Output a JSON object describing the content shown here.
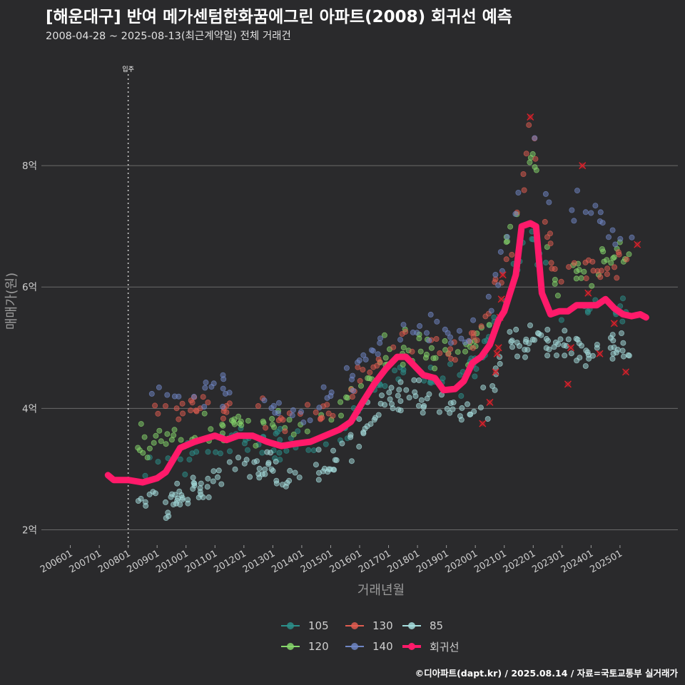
{
  "title": "[해운대구] 반여 메가센텀한화꿈에그린 아파트(2008) 회귀선 예측",
  "subtitle": "2008-04-28 ~ 2025-08-13(최근계약일) 전체 거래건",
  "credit": "©디아파트(dapt.kr) / 2025.08.14 / 자료=국토교통부 실거래가",
  "colors": {
    "background": "#2a2a2c",
    "grid": "#6a6a6a",
    "s105": "#2b8f8a",
    "s120": "#86d66b",
    "s130": "#e05c50",
    "s140": "#6f86c4",
    "s85": "#a6dede",
    "regression": "#ff1a6a",
    "cancelled_marker": "#e0202a"
  },
  "chart_data": {
    "type": "scatter",
    "xlabel": "거래년월",
    "ylabel": "매매가(원)",
    "xlim": [
      "2005-01",
      "2026-12"
    ],
    "ylim": [
      1.7,
      9.6
    ],
    "y_ticks": [
      {
        "value": 2,
        "label": "2억"
      },
      {
        "value": 4,
        "label": "4억"
      },
      {
        "value": 6,
        "label": "6억"
      },
      {
        "value": 8,
        "label": "8억"
      }
    ],
    "x_ticks": [
      {
        "value": 2006.0,
        "label": "200601"
      },
      {
        "value": 2007.0,
        "label": "200701"
      },
      {
        "value": 2008.0,
        "label": "200801"
      },
      {
        "value": 2009.0,
        "label": "200901"
      },
      {
        "value": 2010.0,
        "label": "201001"
      },
      {
        "value": 2011.0,
        "label": "201101"
      },
      {
        "value": 2012.0,
        "label": "201201"
      },
      {
        "value": 2013.0,
        "label": "201301"
      },
      {
        "value": 2014.0,
        "label": "201401"
      },
      {
        "value": 2015.0,
        "label": "201501"
      },
      {
        "value": 2016.0,
        "label": "201601"
      },
      {
        "value": 2017.0,
        "label": "201701"
      },
      {
        "value": 2018.0,
        "label": "201801"
      },
      {
        "value": 2019.0,
        "label": "201901"
      },
      {
        "value": 2020.0,
        "label": "202001"
      },
      {
        "value": 2021.0,
        "label": "202101"
      },
      {
        "value": 2022.0,
        "label": "202201"
      },
      {
        "value": 2023.0,
        "label": "202301"
      },
      {
        "value": 2024.0,
        "label": "202401"
      },
      {
        "value": 2025.0,
        "label": "202501"
      }
    ],
    "annotation": {
      "x": 2008.0,
      "label": "입주"
    },
    "legend_position": "bottom",
    "series": [
      {
        "name": "105",
        "color": "#2b8f8a",
        "anchors": [
          [
            2008.3,
            3.0
          ],
          [
            2009.5,
            3.1
          ],
          [
            2010.5,
            3.3
          ],
          [
            2011.5,
            3.4
          ],
          [
            2012.5,
            3.45
          ],
          [
            2013.5,
            3.4
          ],
          [
            2014.5,
            3.45
          ],
          [
            2015.5,
            3.7
          ],
          [
            2016.5,
            4.3
          ],
          [
            2017.5,
            4.6
          ],
          [
            2018.5,
            4.5
          ],
          [
            2019.5,
            4.45
          ],
          [
            2020.5,
            5.1
          ],
          [
            2021.5,
            6.6
          ],
          [
            2021.9,
            7.0
          ],
          [
            2022.8,
            5.6
          ],
          [
            2023.5,
            5.7
          ],
          [
            2024.5,
            5.6
          ],
          [
            2025.5,
            5.6
          ]
        ],
        "spread": 0.25,
        "count": 120
      },
      {
        "name": "120",
        "color": "#86d66b",
        "anchors": [
          [
            2008.3,
            3.5
          ],
          [
            2009.5,
            3.5
          ],
          [
            2010.5,
            3.6
          ],
          [
            2011.5,
            3.7
          ],
          [
            2012.5,
            3.75
          ],
          [
            2013.5,
            3.65
          ],
          [
            2014.5,
            3.75
          ],
          [
            2015.5,
            4.0
          ],
          [
            2016.5,
            4.7
          ],
          [
            2017.5,
            5.1
          ],
          [
            2018.5,
            4.9
          ],
          [
            2019.5,
            4.8
          ],
          [
            2020.5,
            5.5
          ],
          [
            2021.5,
            7.6
          ],
          [
            2021.9,
            8.2
          ],
          [
            2022.8,
            6.0
          ],
          [
            2023.5,
            6.2
          ],
          [
            2024.5,
            6.5
          ],
          [
            2025.5,
            6.4
          ]
        ],
        "spread": 0.3,
        "count": 130
      },
      {
        "name": "130",
        "color": "#e05c50",
        "anchors": [
          [
            2008.3,
            4.05
          ],
          [
            2009.5,
            4.05
          ],
          [
            2010.5,
            4.05
          ],
          [
            2011.5,
            4.0
          ],
          [
            2012.5,
            3.9
          ],
          [
            2013.5,
            3.75
          ],
          [
            2014.5,
            3.85
          ],
          [
            2015.5,
            4.2
          ],
          [
            2016.5,
            4.9
          ],
          [
            2017.5,
            5.2
          ],
          [
            2018.5,
            5.0
          ],
          [
            2019.5,
            4.9
          ],
          [
            2020.5,
            5.6
          ],
          [
            2021.5,
            7.1
          ],
          [
            2021.9,
            8.8
          ],
          [
            2022.8,
            6.0
          ],
          [
            2023.5,
            6.4
          ],
          [
            2024.5,
            6.2
          ],
          [
            2025.5,
            6.5
          ]
        ],
        "spread": 0.25,
        "count": 110
      },
      {
        "name": "140",
        "color": "#6f86c4",
        "anchors": [
          [
            2008.3,
            4.3
          ],
          [
            2009.5,
            4.3
          ],
          [
            2010.5,
            4.3
          ],
          [
            2011.5,
            4.3
          ],
          [
            2012.5,
            4.1
          ],
          [
            2013.5,
            3.9
          ],
          [
            2014.5,
            4.0
          ],
          [
            2015.5,
            4.4
          ],
          [
            2016.5,
            5.0
          ],
          [
            2017.5,
            5.4
          ],
          [
            2018.5,
            5.3
          ],
          [
            2019.5,
            5.2
          ],
          [
            2020.5,
            5.8
          ],
          [
            2021.5,
            7.5
          ],
          [
            2021.9,
            8.9
          ],
          [
            2022.8,
            6.4
          ],
          [
            2023.5,
            7.5
          ],
          [
            2024.5,
            7.0
          ],
          [
            2025.5,
            6.6
          ]
        ],
        "spread": 0.25,
        "count": 90
      },
      {
        "name": "85",
        "color": "#a6dede",
        "anchors": [
          [
            2008.3,
            2.4
          ],
          [
            2009.5,
            2.4
          ],
          [
            2010.5,
            2.65
          ],
          [
            2011.5,
            3.0
          ],
          [
            2012.5,
            3.0
          ],
          [
            2013.5,
            2.9
          ],
          [
            2014.5,
            3.0
          ],
          [
            2015.5,
            3.2
          ],
          [
            2016.5,
            3.9
          ],
          [
            2017.5,
            4.3
          ],
          [
            2018.5,
            4.0
          ],
          [
            2019.5,
            3.9
          ],
          [
            2020.5,
            4.1
          ],
          [
            2021.0,
            5.0
          ],
          [
            2022.8,
            5.1
          ],
          [
            2023.5,
            5.0
          ],
          [
            2024.5,
            5.0
          ],
          [
            2025.5,
            5.0
          ]
        ],
        "spread": 0.28,
        "count": 220
      }
    ],
    "regression": {
      "name": "회귀선",
      "color": "#ff1a6a",
      "points": [
        [
          2007.3,
          2.9
        ],
        [
          2007.5,
          2.82
        ],
        [
          2008.0,
          2.82
        ],
        [
          2008.5,
          2.78
        ],
        [
          2009.0,
          2.85
        ],
        [
          2009.3,
          2.95
        ],
        [
          2009.8,
          3.35
        ],
        [
          2010.3,
          3.45
        ],
        [
          2011.0,
          3.55
        ],
        [
          2011.4,
          3.48
        ],
        [
          2011.8,
          3.55
        ],
        [
          2012.3,
          3.55
        ],
        [
          2012.8,
          3.45
        ],
        [
          2013.3,
          3.38
        ],
        [
          2013.8,
          3.42
        ],
        [
          2014.3,
          3.45
        ],
        [
          2014.8,
          3.55
        ],
        [
          2015.3,
          3.65
        ],
        [
          2015.7,
          3.78
        ],
        [
          2016.1,
          4.1
        ],
        [
          2016.5,
          4.4
        ],
        [
          2016.9,
          4.65
        ],
        [
          2017.3,
          4.85
        ],
        [
          2017.6,
          4.85
        ],
        [
          2017.9,
          4.7
        ],
        [
          2018.2,
          4.55
        ],
        [
          2018.6,
          4.5
        ],
        [
          2018.9,
          4.3
        ],
        [
          2019.3,
          4.32
        ],
        [
          2019.6,
          4.45
        ],
        [
          2019.9,
          4.75
        ],
        [
          2020.2,
          4.85
        ],
        [
          2020.5,
          5.05
        ],
        [
          2020.8,
          5.45
        ],
        [
          2021.0,
          5.6
        ],
        [
          2021.2,
          5.9
        ],
        [
          2021.4,
          6.2
        ],
        [
          2021.6,
          7.0
        ],
        [
          2021.9,
          7.05
        ],
        [
          2022.1,
          7.0
        ],
        [
          2022.3,
          5.9
        ],
        [
          2022.6,
          5.55
        ],
        [
          2022.9,
          5.6
        ],
        [
          2023.2,
          5.6
        ],
        [
          2023.5,
          5.7
        ],
        [
          2023.9,
          5.7
        ],
        [
          2024.2,
          5.7
        ],
        [
          2024.5,
          5.8
        ],
        [
          2024.8,
          5.65
        ],
        [
          2025.1,
          5.55
        ],
        [
          2025.4,
          5.52
        ],
        [
          2025.7,
          5.55
        ],
        [
          2025.9,
          5.5
        ]
      ]
    },
    "cancelled_points": [
      [
        2020.25,
        3.75
      ],
      [
        2020.5,
        4.1
      ],
      [
        2020.7,
        4.6
      ],
      [
        2020.75,
        4.9
      ],
      [
        2020.8,
        5.0
      ],
      [
        2020.85,
        5.5
      ],
      [
        2020.9,
        5.8
      ],
      [
        2020.95,
        6.2
      ],
      [
        2021.9,
        8.8
      ],
      [
        2023.2,
        4.4
      ],
      [
        2023.3,
        5.0
      ],
      [
        2023.7,
        8.0
      ],
      [
        2023.9,
        5.9
      ],
      [
        2024.3,
        4.9
      ],
      [
        2024.8,
        5.4
      ],
      [
        2025.2,
        4.6
      ],
      [
        2025.6,
        6.7
      ]
    ]
  },
  "legend": [
    {
      "label": "105",
      "color": "#2b8f8a",
      "kind": "point"
    },
    {
      "label": "130",
      "color": "#e05c50",
      "kind": "point"
    },
    {
      "label": "85",
      "color": "#a6dede",
      "kind": "point"
    },
    {
      "label": "120",
      "color": "#86d66b",
      "kind": "point"
    },
    {
      "label": "140",
      "color": "#6f86c4",
      "kind": "point"
    },
    {
      "label": "회귀선",
      "color": "#ff1a6a",
      "kind": "line"
    }
  ]
}
